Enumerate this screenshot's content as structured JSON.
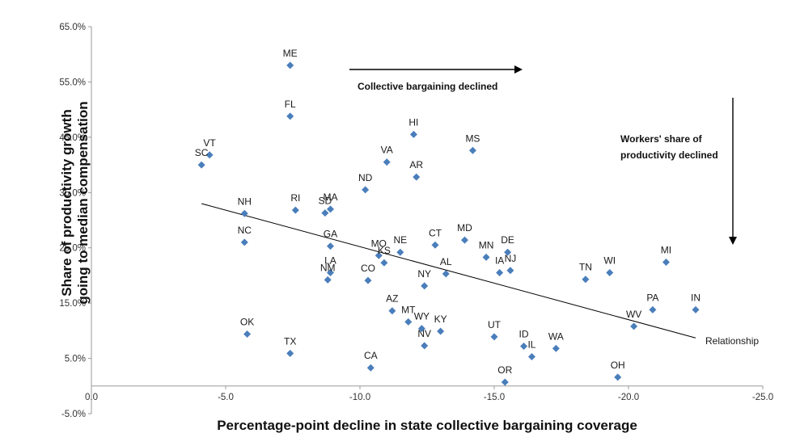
{
  "chart_data": {
    "type": "scatter",
    "xlabel": "Percentage-point decline in state collective bargaining coverage",
    "ylabel_lines": [
      "Share of productivity growth",
      "going to median compensation"
    ],
    "xlim": [
      0,
      -25
    ],
    "ylim": [
      -5,
      65
    ],
    "x_ticks": [
      "0.0",
      "-5.0",
      "-10.0",
      "-15.0",
      "-20.0",
      "-25.0"
    ],
    "x_tick_values": [
      0,
      -5,
      -10,
      -15,
      -20,
      -25
    ],
    "y_ticks": [
      "-5.0%",
      "5.0%",
      "15.0%",
      "25.0%",
      "35.0%",
      "45.0%",
      "55.0%",
      "65.0%"
    ],
    "y_tick_values": [
      -5,
      5,
      15,
      25,
      35,
      45,
      55,
      65
    ],
    "grid": false,
    "marker_color": "#4a7ebb",
    "points": [
      {
        "label": "ME",
        "x": -7.4,
        "y": 58.0
      },
      {
        "label": "FL",
        "x": -7.4,
        "y": 48.8
      },
      {
        "label": "VT",
        "x": -4.4,
        "y": 41.8
      },
      {
        "label": "SC",
        "x": -4.1,
        "y": 40.0
      },
      {
        "label": "NH",
        "x": -5.7,
        "y": 31.2
      },
      {
        "label": "NC",
        "x": -5.7,
        "y": 26.0
      },
      {
        "label": "RI",
        "x": -7.6,
        "y": 31.8
      },
      {
        "label": "SD",
        "x": -8.7,
        "y": 31.3
      },
      {
        "label": "MA",
        "x": -8.9,
        "y": 32.0
      },
      {
        "label": "ND",
        "x": -10.2,
        "y": 35.5
      },
      {
        "label": "VA",
        "x": -11.0,
        "y": 40.5
      },
      {
        "label": "HI",
        "x": -12.0,
        "y": 45.5
      },
      {
        "label": "AR",
        "x": -12.1,
        "y": 37.8
      },
      {
        "label": "MS",
        "x": -14.2,
        "y": 42.6
      },
      {
        "label": "GA",
        "x": -8.9,
        "y": 25.3
      },
      {
        "label": "LA",
        "x": -8.9,
        "y": 20.5
      },
      {
        "label": "NM",
        "x": -8.8,
        "y": 19.2
      },
      {
        "label": "CO",
        "x": -10.3,
        "y": 19.1
      },
      {
        "label": "MO",
        "x": -10.7,
        "y": 23.6
      },
      {
        "label": "KS",
        "x": -10.9,
        "y": 22.3
      },
      {
        "label": "NE",
        "x": -11.5,
        "y": 24.2
      },
      {
        "label": "CT",
        "x": -12.8,
        "y": 25.5
      },
      {
        "label": "MD",
        "x": -13.9,
        "y": 26.4
      },
      {
        "label": "NY",
        "x": -12.4,
        "y": 18.1
      },
      {
        "label": "AL",
        "x": -13.2,
        "y": 20.3
      },
      {
        "label": "MN",
        "x": -14.7,
        "y": 23.3
      },
      {
        "label": "DE",
        "x": -15.5,
        "y": 24.2
      },
      {
        "label": "IA",
        "x": -15.2,
        "y": 20.5
      },
      {
        "label": "NJ",
        "x": -15.6,
        "y": 20.9
      },
      {
        "label": "AZ",
        "x": -11.2,
        "y": 13.6
      },
      {
        "label": "MT",
        "x": -11.8,
        "y": 11.6
      },
      {
        "label": "WY",
        "x": -12.3,
        "y": 10.4
      },
      {
        "label": "KY",
        "x": -13.0,
        "y": 9.9
      },
      {
        "label": "NV",
        "x": -12.4,
        "y": 7.3
      },
      {
        "label": "UT",
        "x": -15.0,
        "y": 8.9
      },
      {
        "label": "ID",
        "x": -16.1,
        "y": 7.2
      },
      {
        "label": "IL",
        "x": -16.4,
        "y": 5.3
      },
      {
        "label": "WA",
        "x": -17.3,
        "y": 6.8
      },
      {
        "label": "OR",
        "x": -15.4,
        "y": 0.7
      },
      {
        "label": "OK",
        "x": -5.8,
        "y": 9.4
      },
      {
        "label": "TX",
        "x": -7.4,
        "y": 5.9
      },
      {
        "label": "CA",
        "x": -10.4,
        "y": 3.3
      },
      {
        "label": "TN",
        "x": -18.4,
        "y": 19.3
      },
      {
        "label": "WI",
        "x": -19.3,
        "y": 20.5
      },
      {
        "label": "MI",
        "x": -21.4,
        "y": 22.4
      },
      {
        "label": "PA",
        "x": -20.9,
        "y": 13.8
      },
      {
        "label": "IN",
        "x": -22.5,
        "y": 13.8
      },
      {
        "label": "WV",
        "x": -20.2,
        "y": 10.8
      },
      {
        "label": "OH",
        "x": -19.6,
        "y": 1.6
      }
    ],
    "trendline": {
      "label": "Relationship",
      "from": {
        "x": -4.1,
        "y": 33.0
      },
      "to": {
        "x": -22.5,
        "y": 8.7
      }
    },
    "annotations": {
      "collective": "Collective bargaining declined",
      "workers_line1": "Workers' share of",
      "workers_line2": "productivity declined"
    }
  }
}
